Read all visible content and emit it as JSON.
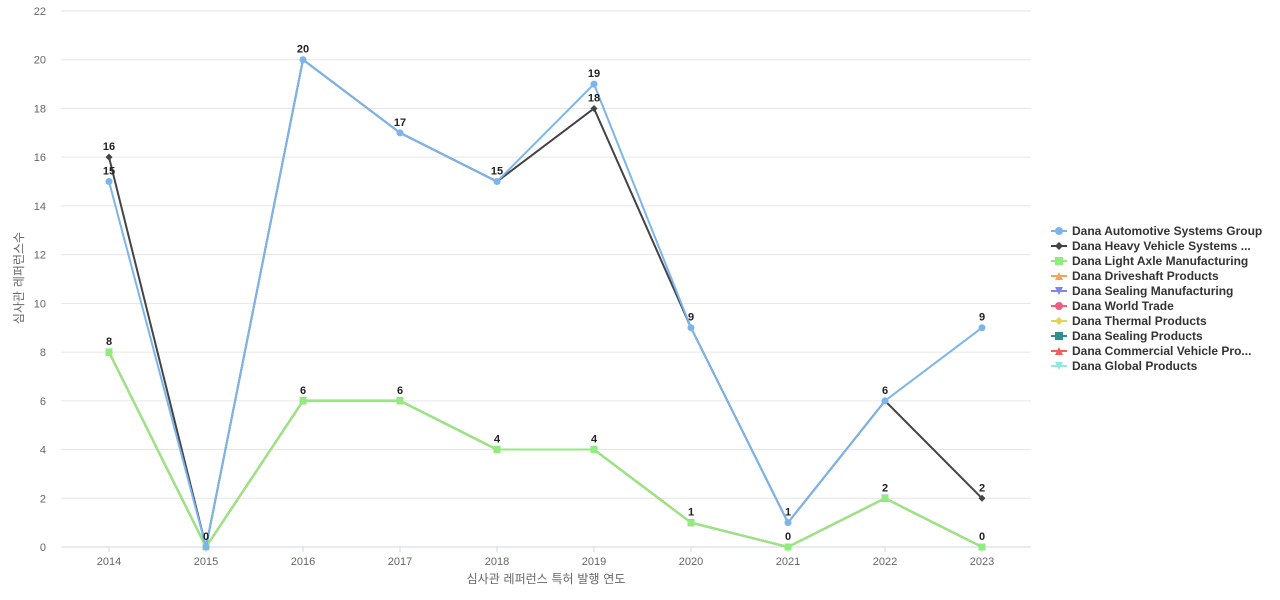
{
  "chart_data": {
    "type": "line",
    "title": "",
    "xlabel": "심사관 레퍼런스 특허 발행 연도",
    "ylabel": "심사관 레퍼런스수",
    "categories": [
      "2014",
      "2015",
      "2016",
      "2017",
      "2018",
      "2019",
      "2020",
      "2021",
      "2022",
      "2023"
    ],
    "ylim": [
      0,
      22
    ],
    "yticks": [
      0,
      2,
      4,
      6,
      8,
      10,
      12,
      14,
      16,
      18,
      20,
      22
    ],
    "grid": true,
    "legend_position": "right",
    "series": [
      {
        "name": "Dana Automotive Systems Group",
        "color": "#7cb5ec",
        "marker": "circle",
        "values": [
          15,
          0,
          20,
          17,
          15,
          19,
          9,
          1,
          6,
          9
        ]
      },
      {
        "name": "Dana Heavy Vehicle Systems ...",
        "color": "#434348",
        "marker": "diamond",
        "values": [
          16,
          0,
          20,
          17,
          15,
          18,
          9,
          1,
          6,
          2
        ]
      },
      {
        "name": "Dana Light Axle Manufacturing",
        "color": "#90ed7d",
        "marker": "square",
        "values": [
          8,
          0,
          6,
          6,
          4,
          4,
          1,
          0,
          2,
          0
        ]
      },
      {
        "name": "Dana Driveshaft Products",
        "color": "#f7a35c",
        "marker": "triangle",
        "values": [
          8,
          0,
          6,
          6,
          4,
          4,
          1,
          0,
          2,
          0
        ]
      },
      {
        "name": "Dana Sealing Manufacturing",
        "color": "#8085e9",
        "marker": "triangle-down",
        "values": [
          8,
          0,
          6,
          6,
          4,
          4,
          1,
          0,
          2,
          0
        ]
      },
      {
        "name": "Dana World Trade",
        "color": "#f15c80",
        "marker": "circle",
        "values": [
          8,
          0,
          6,
          6,
          4,
          4,
          1,
          0,
          2,
          0
        ]
      },
      {
        "name": "Dana Thermal Products",
        "color": "#e4d354",
        "marker": "diamond",
        "values": [
          8,
          0,
          6,
          6,
          4,
          4,
          1,
          0,
          2,
          0
        ]
      },
      {
        "name": "Dana Sealing Products",
        "color": "#2b908f",
        "marker": "square",
        "values": [
          8,
          0,
          6,
          6,
          4,
          4,
          1,
          0,
          2,
          0
        ]
      },
      {
        "name": "Dana Commercial Vehicle Pro...",
        "color": "#f45b5b",
        "marker": "triangle",
        "values": [
          8,
          0,
          6,
          6,
          4,
          4,
          1,
          0,
          2,
          0
        ]
      },
      {
        "name": "Dana Global Products",
        "color": "#91e8e1",
        "marker": "triangle-down",
        "values": [
          8,
          0,
          6,
          6,
          4,
          4,
          1,
          0,
          2,
          0
        ]
      }
    ],
    "data_labels": [
      {
        "category": "2014",
        "value": 16,
        "text": "16"
      },
      {
        "category": "2014",
        "value": 15,
        "text": "15"
      },
      {
        "category": "2014",
        "value": 8,
        "text": "8"
      },
      {
        "category": "2015",
        "value": 0,
        "text": "0"
      },
      {
        "category": "2016",
        "value": 20,
        "text": "20"
      },
      {
        "category": "2016",
        "value": 6,
        "text": "6"
      },
      {
        "category": "2017",
        "value": 17,
        "text": "17"
      },
      {
        "category": "2017",
        "value": 6,
        "text": "6"
      },
      {
        "category": "2018",
        "value": 15,
        "text": "15"
      },
      {
        "category": "2018",
        "value": 4,
        "text": "4"
      },
      {
        "category": "2019",
        "value": 19,
        "text": "19"
      },
      {
        "category": "2019",
        "value": 18,
        "text": "18"
      },
      {
        "category": "2019",
        "value": 4,
        "text": "4"
      },
      {
        "category": "2020",
        "value": 9,
        "text": "9"
      },
      {
        "category": "2020",
        "value": 1,
        "text": "1"
      },
      {
        "category": "2021",
        "value": 1,
        "text": "1"
      },
      {
        "category": "2021",
        "value": 0,
        "text": "0"
      },
      {
        "category": "2022",
        "value": 6,
        "text": "6"
      },
      {
        "category": "2022",
        "value": 2,
        "text": "2"
      },
      {
        "category": "2023",
        "value": 9,
        "text": "9"
      },
      {
        "category": "2023",
        "value": 2,
        "text": "2"
      },
      {
        "category": "2023",
        "value": 0,
        "text": "0"
      }
    ]
  }
}
